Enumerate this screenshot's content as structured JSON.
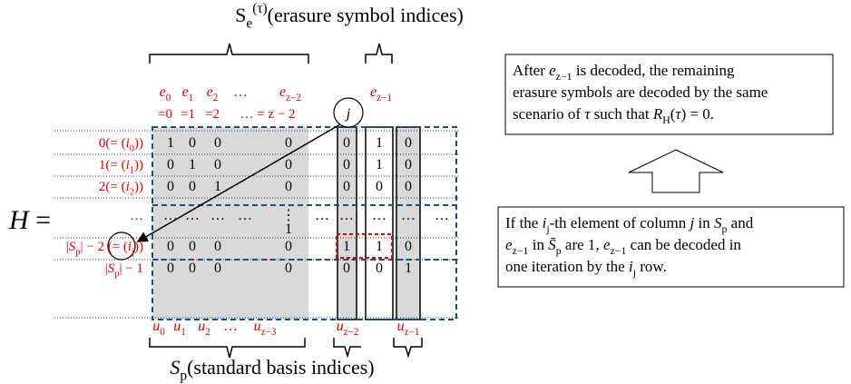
{
  "top_label": [
    "S",
    {
      "sub": "e"
    },
    {
      "sup": "(τ)"
    },
    "(erasure symbol indices)"
  ],
  "h_label": [
    {
      "i": "H"
    },
    " ="
  ],
  "header_e": [
    [
      {
        "i": "e"
      },
      {
        "sub": "0"
      }
    ],
    [
      {
        "i": "e"
      },
      {
        "sub": "1"
      }
    ],
    [
      {
        "i": "e"
      },
      {
        "sub": "2"
      }
    ],
    [
      "…"
    ],
    [
      {
        "i": "e"
      },
      {
        "sub": "z−2"
      }
    ],
    [
      {
        "i": "e"
      },
      {
        "sub": "z−1"
      }
    ]
  ],
  "header_eq": [
    "=0",
    "=1",
    "=2",
    "… = z − 2"
  ],
  "circle_j": [
    {
      "i": "j"
    }
  ],
  "row_labels": [
    [
      "0(= (",
      {
        "i": "i"
      },
      {
        "sub": "0"
      },
      "))"
    ],
    [
      "1(= (",
      {
        "i": "i"
      },
      {
        "sub": "1"
      },
      "))"
    ],
    [
      "2(= (",
      {
        "i": "i"
      },
      {
        "sub": "2"
      },
      "))"
    ],
    [
      "…"
    ],
    [
      "|",
      {
        "i": "S"
      },
      {
        "sub": "p"
      },
      "| − 2 (= (",
      {
        "i": "i"
      },
      {
        "sub": "j"
      },
      "))"
    ],
    [
      "|",
      {
        "i": "S"
      },
      {
        "sub": "p"
      },
      "| − 1"
    ]
  ],
  "matrix": [
    [
      "1",
      "0",
      "0",
      null,
      "0",
      null,
      "0",
      "1",
      "0",
      null
    ],
    [
      "0",
      "1",
      "0",
      null,
      "0",
      null,
      "0",
      "1",
      "0",
      null
    ],
    [
      "0",
      "0",
      "1",
      null,
      "0",
      null,
      "0",
      "0",
      "0",
      null
    ],
    [
      "…",
      "…",
      "…",
      "…",
      "⋮",
      "…",
      "…",
      "…",
      "…",
      "…"
    ],
    [
      "0",
      "0",
      "0",
      null,
      "0",
      null,
      "1",
      "1",
      "0",
      null
    ],
    [
      "0",
      "0",
      "0",
      null,
      "0",
      null,
      "0",
      "0",
      "1",
      null
    ]
  ],
  "matrix_extra": "1",
  "footer_u": [
    [
      {
        "i": "u"
      },
      {
        "sub": "0"
      }
    ],
    [
      {
        "i": "u"
      },
      {
        "sub": "1"
      }
    ],
    [
      {
        "i": "u"
      },
      {
        "sub": "2"
      }
    ],
    [
      "…"
    ],
    [
      {
        "i": "u"
      },
      {
        "sub": "z−3"
      }
    ],
    [
      {
        "i": "u"
      },
      {
        "sub": "z−2"
      }
    ],
    [
      {
        "i": "u"
      },
      {
        "sub": "z−1"
      }
    ]
  ],
  "bottom_label": [
    {
      "i": "S"
    },
    {
      "sub": "p"
    },
    "(standard basis indices)"
  ],
  "box_top": [
    [
      "After ",
      {
        "i": "e"
      },
      {
        "sub": "z−1"
      },
      " is decoded, the remaining"
    ],
    [
      "erasure symbols are decoded by the same"
    ],
    [
      "scenario of ",
      {
        "i": "τ"
      },
      " such that ",
      {
        "i": "R"
      },
      {
        "sub": "H"
      },
      "(",
      {
        "i": "τ"
      },
      ") = 0."
    ]
  ],
  "box_bottom": [
    [
      "If the ",
      {
        "i": "i"
      },
      {
        "sub": "j"
      },
      "-th element of column ",
      {
        "i": "j"
      },
      " in ",
      {
        "i": "S"
      },
      {
        "sub": "p"
      },
      " and"
    ],
    [
      {
        "i": "e"
      },
      {
        "sub": "z−1"
      },
      " in ",
      {
        "i": "S̄"
      },
      {
        "sub": "p"
      },
      " are 1, ",
      {
        "i": "e"
      },
      {
        "sub": "z−1"
      },
      " can be decoded in"
    ],
    [
      "one iteration by the ",
      {
        "i": "i"
      },
      {
        "sub": "j"
      },
      " row."
    ]
  ]
}
